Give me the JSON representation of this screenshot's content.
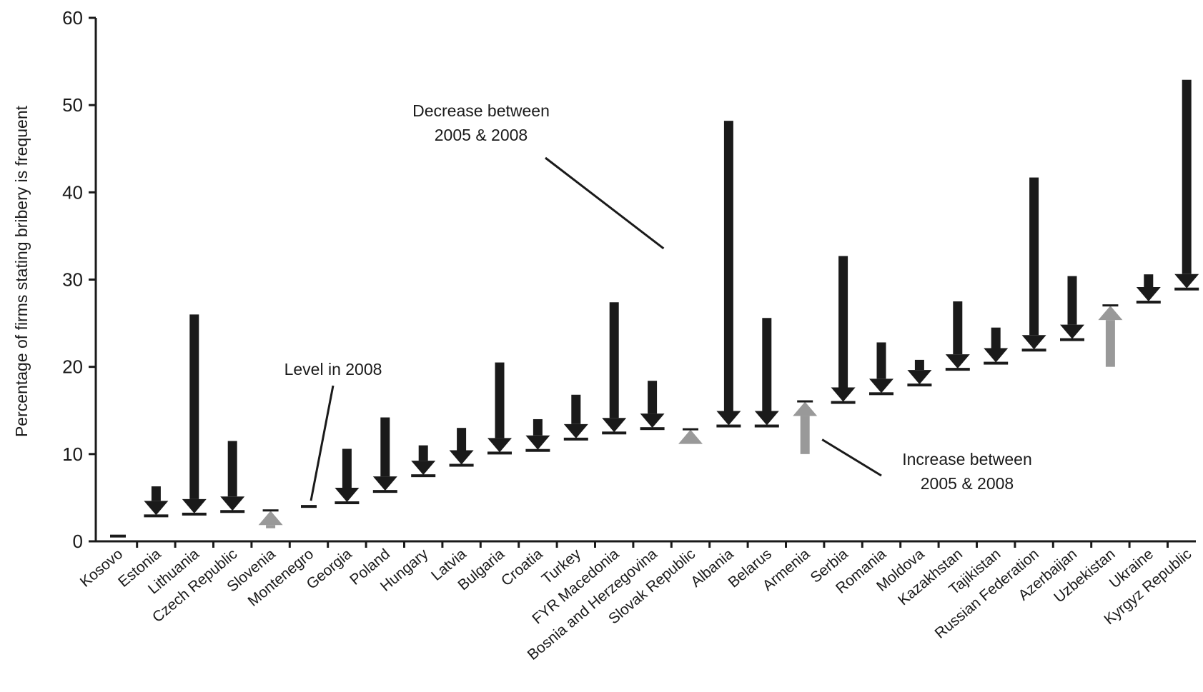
{
  "chart_data": {
    "type": "arrow-range",
    "ylabel": "Percentage of firms stating bribery is frequent",
    "ylim": [
      0,
      60
    ],
    "yticks": [
      0,
      10,
      20,
      30,
      40,
      50,
      60
    ],
    "grid": false,
    "colors": {
      "decrease": "#1a1a1a",
      "increase": "#999999",
      "axis": "#1a1a1a"
    },
    "categories": [
      "Kosovo",
      "Estonia",
      "Lithuania",
      "Czech Republic",
      "Slovenia",
      "Montenegro",
      "Georgia",
      "Poland",
      "Hungary",
      "Latvia",
      "Bulgaria",
      "Croatia",
      "Turkey",
      "FYR Macedonia",
      "Bosnia and Herzegovina",
      "Slovak Republic",
      "Albania",
      "Belarus",
      "Armenia",
      "Serbia",
      "Romania",
      "Moldova",
      "Kazakhstan",
      "Tajikistan",
      "Russian Federation",
      "Azerbaijan",
      "Uzbekistan",
      "Ukraine",
      "Kyrgyz Republic"
    ],
    "series": [
      {
        "name": "2005",
        "values": [
          null,
          6.3,
          26.0,
          11.5,
          1.5,
          null,
          10.6,
          14.2,
          11.0,
          13.0,
          20.5,
          14.0,
          16.8,
          27.4,
          18.4,
          11.4,
          48.2,
          25.6,
          10.0,
          32.7,
          22.8,
          20.8,
          27.5,
          24.5,
          41.7,
          30.4,
          20.0,
          30.6,
          52.9
        ]
      },
      {
        "name": "2008",
        "values": [
          0.6,
          3.0,
          3.2,
          3.5,
          3.5,
          4.0,
          4.5,
          5.8,
          7.6,
          8.8,
          10.2,
          10.5,
          11.8,
          12.5,
          13.0,
          12.8,
          13.3,
          13.3,
          16.0,
          16.0,
          17.0,
          18.0,
          19.8,
          20.5,
          22.0,
          23.2,
          27.0,
          27.5,
          29.0
        ]
      }
    ],
    "direction": [
      "level",
      "decrease",
      "decrease",
      "decrease",
      "increase",
      "level",
      "decrease",
      "decrease",
      "decrease",
      "decrease",
      "decrease",
      "decrease",
      "decrease",
      "decrease",
      "decrease",
      "increase",
      "decrease",
      "decrease",
      "increase",
      "decrease",
      "decrease",
      "decrease",
      "decrease",
      "decrease",
      "decrease",
      "decrease",
      "increase",
      "decrease",
      "decrease"
    ],
    "annotations": {
      "level": {
        "text": "Level in 2008",
        "target": "Montenegro"
      },
      "decrease": {
        "lines": [
          "Decrease between",
          "2005 & 2008"
        ],
        "target": "Albania"
      },
      "increase": {
        "lines": [
          "Increase between",
          "2005 & 2008"
        ],
        "target": "Armenia"
      }
    }
  }
}
